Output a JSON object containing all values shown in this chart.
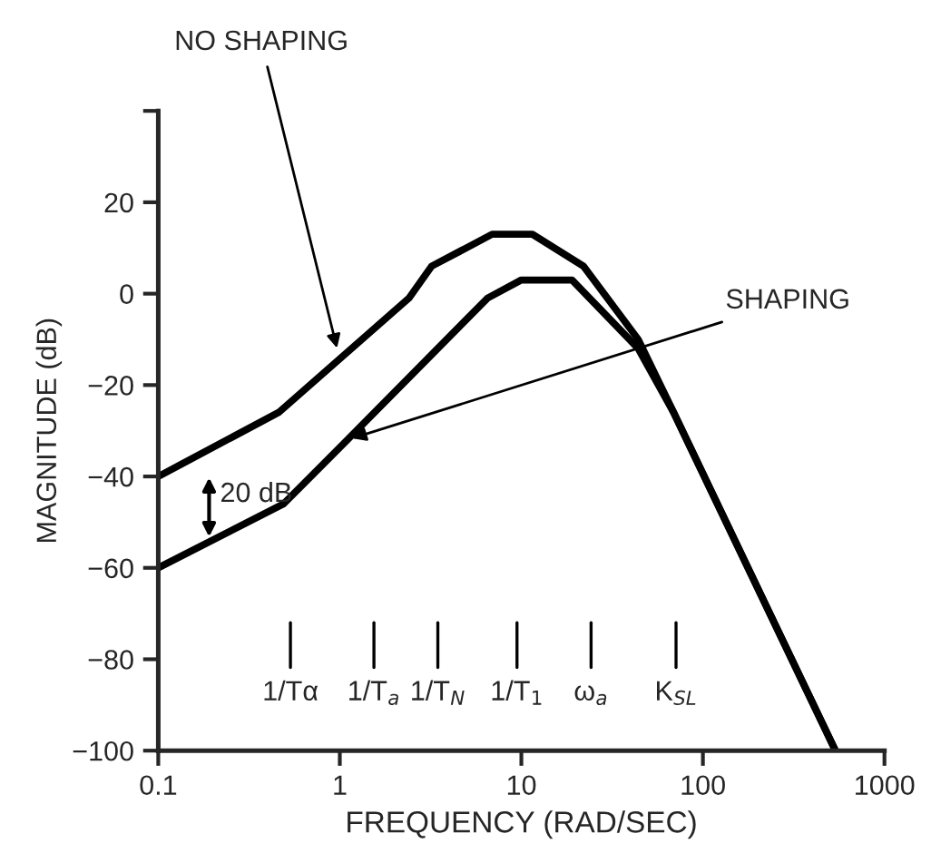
{
  "chart_data": {
    "type": "line",
    "xlabel": "FREQUENCY (RAD/SEC)",
    "ylabel": "MAGNITUDE (dB)",
    "log": "x",
    "xlim": [
      0.1,
      1000
    ],
    "xticks": [
      0.1,
      1,
      10,
      100,
      1000
    ],
    "ylim": [
      -100,
      40
    ],
    "yticks": [
      -100,
      -80,
      -60,
      -40,
      -20,
      0,
      20,
      {
        "value": 40,
        "label": null
      }
    ],
    "grid": false,
    "legend": false,
    "marker": "none",
    "line_style": "solid",
    "series": [
      {
        "color": "#000000",
        "x": [
          0.1,
          0.46,
          2.4,
          3.2,
          6.9,
          11.5,
          22,
          44,
          69,
          537
        ],
        "values": [
          -40,
          -26,
          -1,
          6,
          13,
          13,
          6,
          -10,
          -26,
          -100
        ]
      },
      {
        "color": "#000000",
        "x": [
          0.1,
          0.49,
          1.1,
          6.5,
          10,
          19,
          44,
          69,
          537
        ],
        "values": [
          -60,
          -46,
          -32,
          -1,
          3,
          3,
          -12,
          -26,
          -100
        ]
      }
    ],
    "annotations": [
      {
        "text": "NO SHAPING",
        "x": 0.98,
        "y": -13
      },
      {
        "text": "SHAPING",
        "x": 1.1,
        "y": -32
      },
      "20 dB",
      "1/Tα",
      "1/T$_{a}$",
      "1/T$_{N}$",
      "1/T$_{1}$",
      "ω$_{a}$",
      "K$_{SL}$"
    ]
  }
}
